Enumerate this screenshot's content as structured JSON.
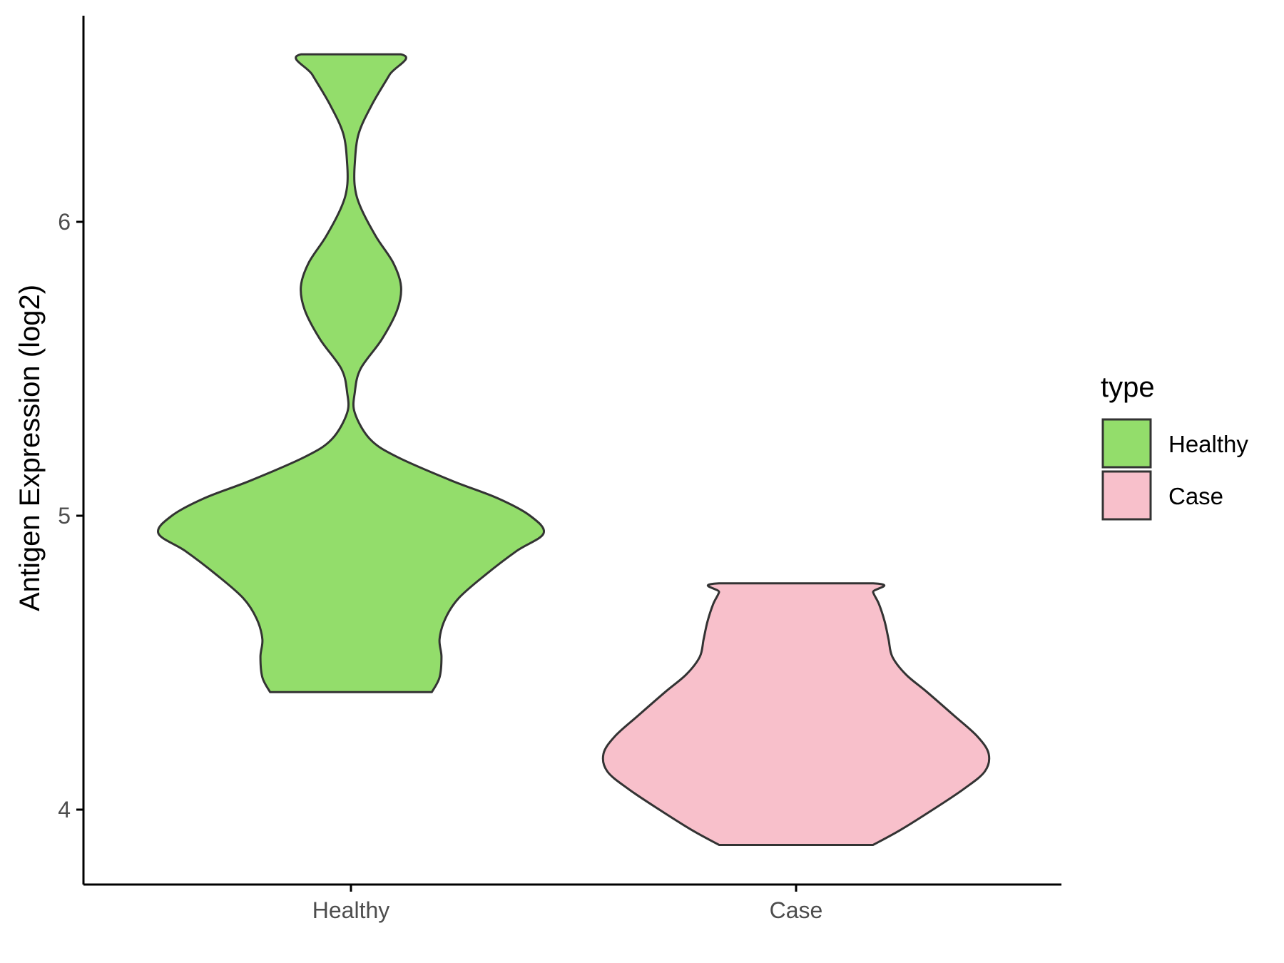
{
  "chart_data": {
    "type": "violin",
    "title": "",
    "xlabel": "",
    "ylabel": "Antigen Expression (log2)",
    "categories": [
      "Healthy",
      "Case"
    ],
    "y_ticks": [
      4,
      5,
      6
    ],
    "ylim": [
      3.71,
      6.74
    ],
    "grid": false,
    "legend": {
      "title": "type",
      "placement": "right",
      "entries": [
        {
          "label": "Healthy",
          "color": "#93dd6b"
        },
        {
          "label": "Case",
          "color": "#f8c0cb"
        }
      ]
    },
    "series": [
      {
        "name": "Healthy",
        "color": "#93dd6b",
        "y_min": 4.4,
        "y_max": 6.57,
        "density_profile": [
          [
            4.4,
            0.42
          ],
          [
            4.45,
            0.46
          ],
          [
            4.52,
            0.47
          ],
          [
            4.58,
            0.46
          ],
          [
            4.65,
            0.49
          ],
          [
            4.72,
            0.56
          ],
          [
            4.8,
            0.7
          ],
          [
            4.88,
            0.86
          ],
          [
            4.94,
            1.0
          ],
          [
            5.0,
            0.93
          ],
          [
            5.06,
            0.76
          ],
          [
            5.12,
            0.52
          ],
          [
            5.2,
            0.24
          ],
          [
            5.26,
            0.1
          ],
          [
            5.35,
            0.02
          ],
          [
            5.42,
            0.02
          ],
          [
            5.5,
            0.05
          ],
          [
            5.6,
            0.16
          ],
          [
            5.7,
            0.24
          ],
          [
            5.78,
            0.26
          ],
          [
            5.86,
            0.22
          ],
          [
            5.95,
            0.13
          ],
          [
            6.05,
            0.05
          ],
          [
            6.12,
            0.02
          ],
          [
            6.2,
            0.02
          ],
          [
            6.3,
            0.04
          ],
          [
            6.4,
            0.11
          ],
          [
            6.5,
            0.2
          ],
          [
            6.57,
            0.26
          ]
        ]
      },
      {
        "name": "Case",
        "color": "#f8c0cb",
        "y_min": 3.88,
        "y_max": 4.77,
        "density_profile": [
          [
            3.88,
            0.4
          ],
          [
            3.93,
            0.54
          ],
          [
            4.0,
            0.71
          ],
          [
            4.07,
            0.87
          ],
          [
            4.13,
            0.98
          ],
          [
            4.19,
            1.0
          ],
          [
            4.25,
            0.94
          ],
          [
            4.32,
            0.82
          ],
          [
            4.4,
            0.68
          ],
          [
            4.46,
            0.57
          ],
          [
            4.52,
            0.5
          ],
          [
            4.58,
            0.48
          ],
          [
            4.64,
            0.46
          ],
          [
            4.7,
            0.43
          ],
          [
            4.74,
            0.4
          ],
          [
            4.77,
            0.4
          ]
        ]
      }
    ]
  }
}
